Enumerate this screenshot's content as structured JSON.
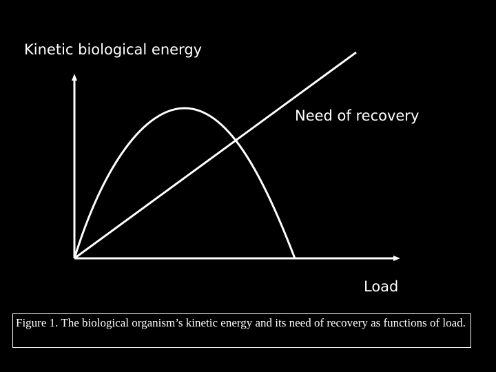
{
  "diagram": {
    "y_axis_label": "Kinetic biological energy",
    "x_axis_label": "Load",
    "line_label": "Need of recovery",
    "line_color": "#ffffff",
    "background": "#000000"
  },
  "caption": "Figure 1. The biological organism’s kinetic energy and its need of recovery as functions of load."
}
